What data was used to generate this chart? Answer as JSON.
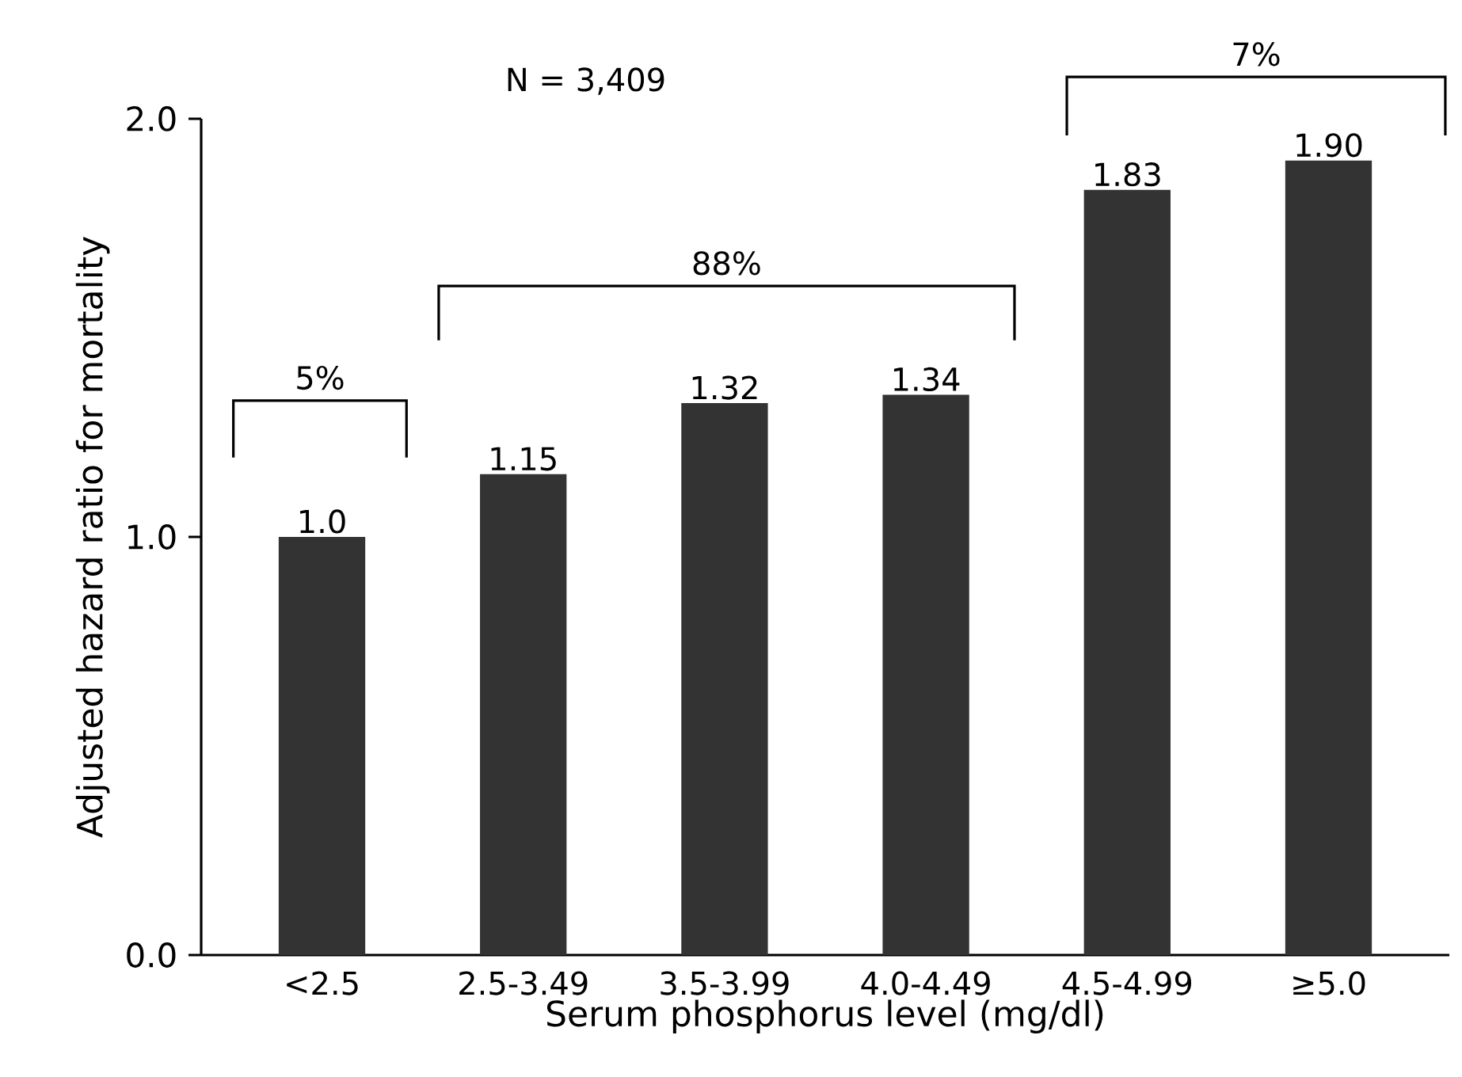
{
  "chart_data": {
    "type": "bar",
    "xlabel": "Serum phosphorus level (mg/dl)",
    "ylabel": "Adjusted hazard ratio for mortality",
    "categories": [
      "<2.5",
      "2.5-3.49",
      "3.5-3.99",
      "4.0-4.49",
      "4.5-4.99",
      "≥5.0"
    ],
    "values": [
      1.0,
      1.15,
      1.32,
      1.34,
      1.83,
      1.9
    ],
    "value_labels": [
      "1.0",
      "1.15",
      "1.32",
      "1.34",
      "1.83",
      "1.90"
    ],
    "color": "#333333",
    "ylim": [
      0,
      2.0
    ],
    "yticks": [
      {
        "value": 0,
        "label": "0.0"
      },
      {
        "value": 1,
        "label": "1.0"
      },
      {
        "value": 2,
        "label": "2.0"
      }
    ],
    "annotations": [
      "N = 3,409",
      "5%",
      "88%",
      "7%"
    ]
  }
}
